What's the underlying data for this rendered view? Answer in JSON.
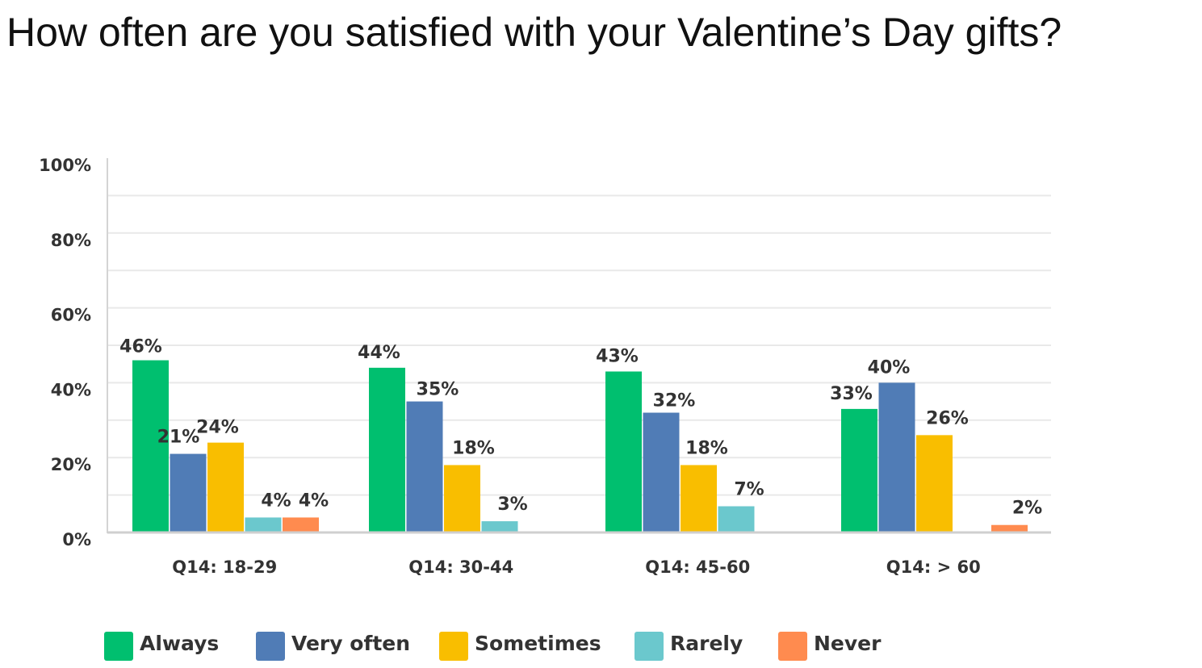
{
  "chart_data": {
    "type": "bar",
    "title": "How often are you satisfied with your Valentine’s Day gifts?",
    "xlabel": "",
    "ylabel": "",
    "categories": [
      "Q14: 18-29",
      "Q14: 30-44",
      "Q14: 45-60",
      "Q14: > 60"
    ],
    "series": [
      {
        "name": "Always",
        "color": "#00BF6F",
        "values": [
          46,
          44,
          43,
          33
        ],
        "labels": [
          "46%",
          "44%",
          "43%",
          "33%"
        ]
      },
      {
        "name": "Very often",
        "color": "#507CB6",
        "values": [
          21,
          35,
          32,
          40
        ],
        "labels": [
          "21%",
          "35%",
          "32%",
          "40%"
        ]
      },
      {
        "name": "Sometimes",
        "color": "#F9BE00",
        "values": [
          24,
          18,
          18,
          26
        ],
        "labels": [
          "24%",
          "18%",
          "18%",
          "26%"
        ]
      },
      {
        "name": "Rarely",
        "color": "#6BC8CD",
        "values": [
          4,
          3,
          7,
          0
        ],
        "labels": [
          "4%",
          "3%",
          "7%",
          ""
        ]
      },
      {
        "name": "Never",
        "color": "#FF8B4F",
        "values": [
          4,
          0,
          0,
          2
        ],
        "labels": [
          "4%",
          "",
          "",
          "2%"
        ]
      }
    ],
    "ylim": [
      0,
      100
    ],
    "yticks": [
      0,
      20,
      40,
      60,
      80,
      100
    ],
    "ytick_labels": [
      "0%",
      "20%",
      "40%",
      "60%",
      "80%",
      "100%"
    ],
    "grid": true,
    "legend_position": "bottom"
  }
}
